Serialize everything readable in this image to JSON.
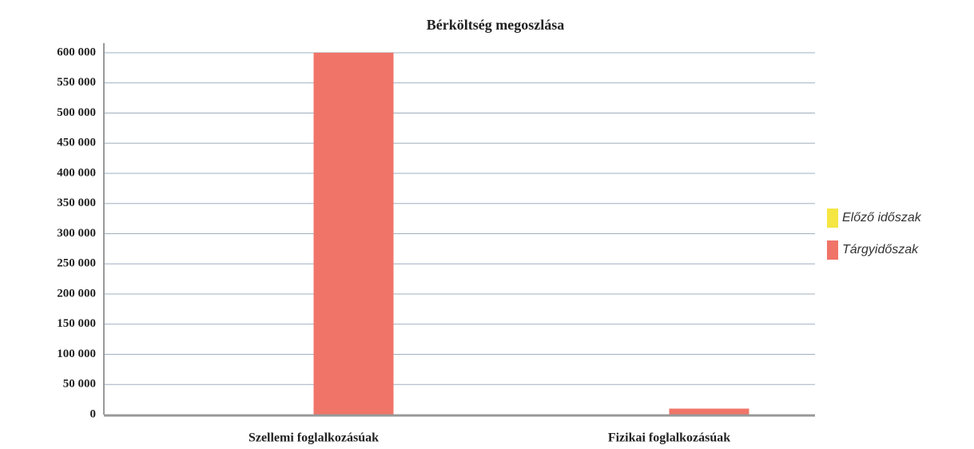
{
  "chart_data": {
    "type": "bar",
    "title": "Bérköltség megoszlása",
    "categories": [
      "Szellemi foglalkozásúak",
      "Fizikai foglalkozásúak"
    ],
    "series": [
      {
        "name": "Előző időszak",
        "color": "#f5e642",
        "values": [
          0,
          0
        ]
      },
      {
        "name": "Tárgyidőszak",
        "color": "#f07468",
        "values": [
          600000,
          10000
        ]
      }
    ],
    "ylim": [
      0,
      600000
    ],
    "yticks": [
      0,
      {
        "value": 50000,
        "label": "50 000"
      },
      {
        "value": 100000,
        "label": "100 000"
      },
      {
        "value": 150000,
        "label": "150 000"
      },
      {
        "value": 200000,
        "label": "200 000"
      },
      {
        "value": 250000,
        "label": "250 000"
      },
      {
        "value": 300000,
        "label": "300 000"
      },
      {
        "value": 350000,
        "label": "350 000"
      },
      {
        "value": 400000,
        "label": "400 000"
      },
      {
        "value": 450000,
        "label": "450 000"
      },
      {
        "value": 500000,
        "label": "500 000"
      },
      {
        "value": 550000,
        "label": "550 000"
      },
      {
        "value": 600000,
        "label": "600 000"
      }
    ],
    "grid": true,
    "legend": "right"
  }
}
